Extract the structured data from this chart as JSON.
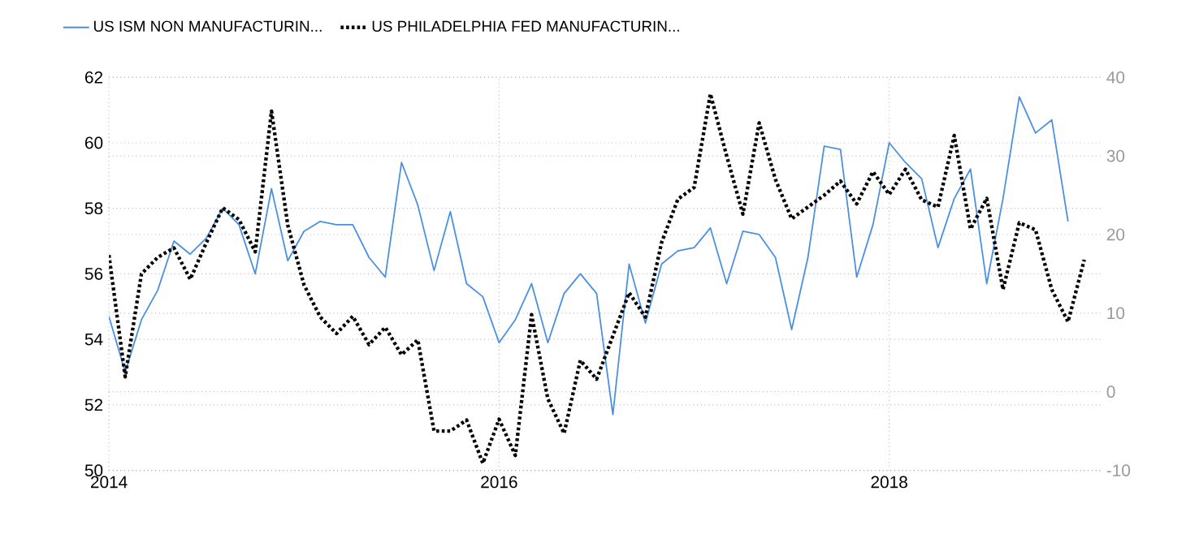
{
  "chart_data": {
    "type": "line",
    "x": [
      "2014-01",
      "2014-02",
      "2014-03",
      "2014-04",
      "2014-05",
      "2014-06",
      "2014-07",
      "2014-08",
      "2014-09",
      "2014-10",
      "2014-11",
      "2014-12",
      "2015-01",
      "2015-02",
      "2015-03",
      "2015-04",
      "2015-05",
      "2015-06",
      "2015-07",
      "2015-08",
      "2015-09",
      "2015-10",
      "2015-11",
      "2015-12",
      "2016-01",
      "2016-02",
      "2016-03",
      "2016-04",
      "2016-05",
      "2016-06",
      "2016-07",
      "2016-08",
      "2016-09",
      "2016-10",
      "2016-11",
      "2016-12",
      "2017-01",
      "2017-02",
      "2017-03",
      "2017-04",
      "2017-05",
      "2017-06",
      "2017-07",
      "2017-08",
      "2017-09",
      "2017-10",
      "2017-11",
      "2017-12",
      "2018-01",
      "2018-02",
      "2018-03",
      "2018-04",
      "2018-05",
      "2018-06",
      "2018-07",
      "2018-08",
      "2018-09",
      "2018-10",
      "2018-11",
      "2018-12",
      "2019-01"
    ],
    "series": [
      {
        "name": "US ISM NON MANUFACTURIN...",
        "color": "#4a90e2",
        "line_style": "solid",
        "values": [
          54.7,
          53.0,
          54.6,
          55.5,
          57.0,
          56.6,
          57.1,
          58.0,
          57.5,
          56.0,
          58.6,
          56.4,
          57.3,
          57.6,
          57.5,
          57.5,
          56.5,
          55.9,
          59.4,
          58.1,
          56.1,
          57.9,
          55.7,
          55.3,
          53.9,
          54.6,
          55.7,
          53.9,
          55.4,
          56.0,
          55.4,
          51.7,
          56.3,
          54.5,
          56.3,
          56.7,
          56.8,
          57.4,
          55.7,
          57.3,
          57.2,
          56.5,
          54.3,
          56.5,
          59.9,
          59.8,
          55.9,
          57.5,
          60.0,
          59.4,
          58.9,
          56.8,
          58.3,
          59.2,
          55.7,
          58.3,
          61.4,
          60.3,
          60.7,
          57.6,
          null
        ]
      },
      {
        "name": "US PHILADELPHIA FED MANUFACTURIN...",
        "color": "#000000",
        "line_style": "dotted",
        "axis": "y2",
        "values": [
          17.4,
          1.9,
          15.0,
          17.1,
          18.3,
          14.3,
          19.0,
          23.4,
          21.9,
          17.8,
          35.7,
          21.2,
          13.6,
          9.5,
          7.4,
          9.6,
          6.0,
          8.2,
          4.7,
          6.6,
          -5.0,
          -5.0,
          -3.6,
          -9.1,
          -3.5,
          -8.1,
          9.8,
          -0.9,
          -5.3,
          4.0,
          1.6,
          7.1,
          12.6,
          9.5,
          19.0,
          24.5,
          26.0,
          37.9,
          30.0,
          22.6,
          34.2,
          27.0,
          22.0,
          23.5,
          25.0,
          26.8,
          23.9,
          28.0,
          25.1,
          28.3,
          24.4,
          23.5,
          32.6,
          20.7,
          24.6,
          13.0,
          21.5,
          20.6,
          13.0,
          8.9,
          16.8
        ]
      }
    ],
    "xlim": [
      "2014-01",
      "2019-02"
    ],
    "xticks": [
      "2014",
      "2016",
      "2018"
    ],
    "ylim": [
      50,
      62
    ],
    "yticks": [
      50,
      52,
      54,
      56,
      58,
      60,
      62
    ],
    "y2lim": [
      -10,
      40
    ],
    "y2ticks": [
      -10,
      0,
      10,
      20,
      30,
      40
    ],
    "grid": true,
    "legend": "top left"
  }
}
